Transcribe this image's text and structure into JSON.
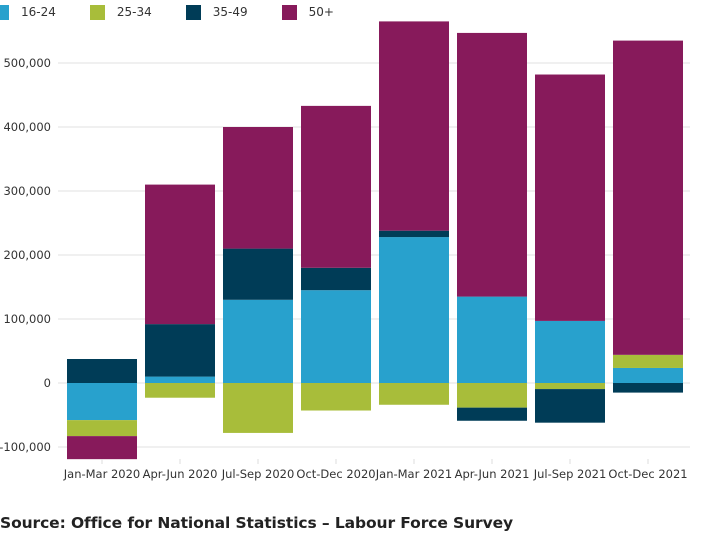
{
  "chart_data": {
    "type": "bar",
    "stacked": true,
    "title": "",
    "xlabel": "",
    "ylabel": "",
    "ylim": [
      -120000,
      580000
    ],
    "yticks": [
      -100000,
      0,
      100000,
      200000,
      300000,
      400000,
      500000
    ],
    "ytick_labels": [
      "-100,000",
      "0",
      "100,000",
      "200,000",
      "300,000",
      "400,000",
      "500,000"
    ],
    "grid": true,
    "legend_position": "top-left",
    "categories": [
      "Jan-Mar 2020",
      "Apr-Jun 2020",
      "Jul-Sep 2020",
      "Oct-Dec 2020",
      "Jan-Mar 2021",
      "Apr-Jun 2021",
      "Jul-Sep 2021",
      "Oct-Dec 2021"
    ],
    "series": [
      {
        "name": "16-24",
        "color": "#28a1cd",
        "values": [
          -58000,
          10000,
          130000,
          145000,
          228000,
          135000,
          97000,
          23500
        ]
      },
      {
        "name": "25-34",
        "color": "#a8bd3a",
        "values": [
          -25000,
          -23000,
          -78000,
          -43000,
          -34000,
          -38500,
          -9500,
          20500
        ]
      },
      {
        "name": "35-49",
        "color": "#003c57",
        "values": [
          37500,
          82000,
          80000,
          35000,
          10000,
          -20500,
          -52500,
          -15000
        ]
      },
      {
        "name": "50+",
        "color": "#871a5b",
        "values": [
          -36000,
          218000,
          190000,
          253000,
          327000,
          412000,
          385000,
          491000
        ]
      }
    ]
  },
  "source": "Source: Office for National Statistics – Labour Force Survey"
}
